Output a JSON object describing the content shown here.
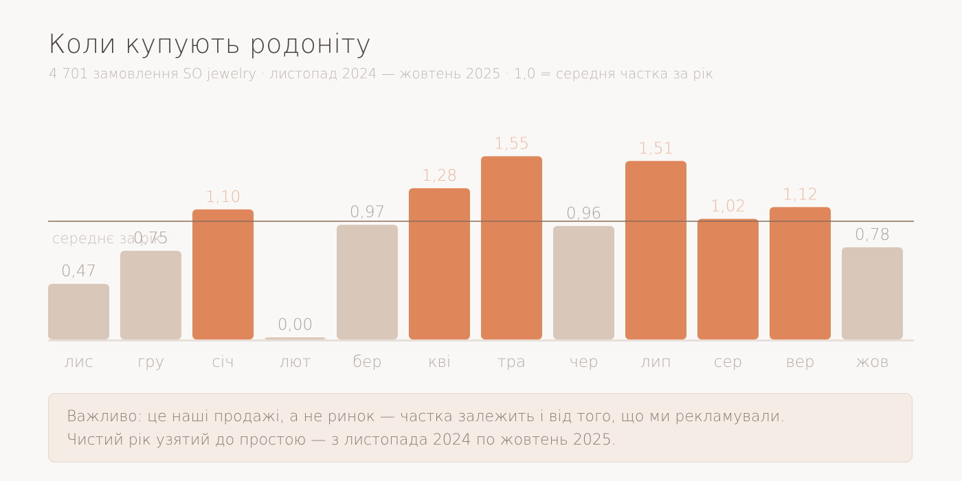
{
  "header": {
    "title": "Коли купують родоніту",
    "subtitle": "4 701 замовлення SO jewelry · листопад 2024 — жовтень 2025 · 1,0 = середня частка за рік"
  },
  "chart_data": {
    "type": "bar",
    "categories": [
      "лис",
      "гру",
      "січ",
      "лют",
      "бер",
      "кві",
      "тра",
      "чер",
      "лип",
      "сер",
      "вер",
      "жов"
    ],
    "values": [
      0.47,
      0.75,
      1.1,
      0.0,
      0.97,
      1.28,
      1.55,
      0.96,
      1.51,
      1.02,
      1.12,
      0.78
    ],
    "value_labels": [
      "0,47",
      "0,75",
      "1,10",
      "0,00",
      "0,97",
      "1,28",
      "1,55",
      "0,96",
      "1,51",
      "1,02",
      "1,12",
      "0,78"
    ],
    "reference_line": {
      "value": 1.0,
      "label": "середнє за рік"
    },
    "highlight_rule": "values above 1.0 shown in accent color",
    "ylim": [
      0,
      1.6
    ],
    "grid": false,
    "legend": "none",
    "colors": {
      "above_average": "#e0865b",
      "below_average": "#d9c8ba",
      "above_label": "#eeb69c",
      "below_label": "#aaa09a",
      "reference_line": "#8b6c5c",
      "baseline": "#e8dfd8"
    }
  },
  "note": {
    "line1": "Важливо: це наші продажі, а не ринок — частка залежить і від того, що ми рекламували.",
    "line2": "Чистий рік узятий до простою — з листопада 2024 по жовтень 2025."
  }
}
